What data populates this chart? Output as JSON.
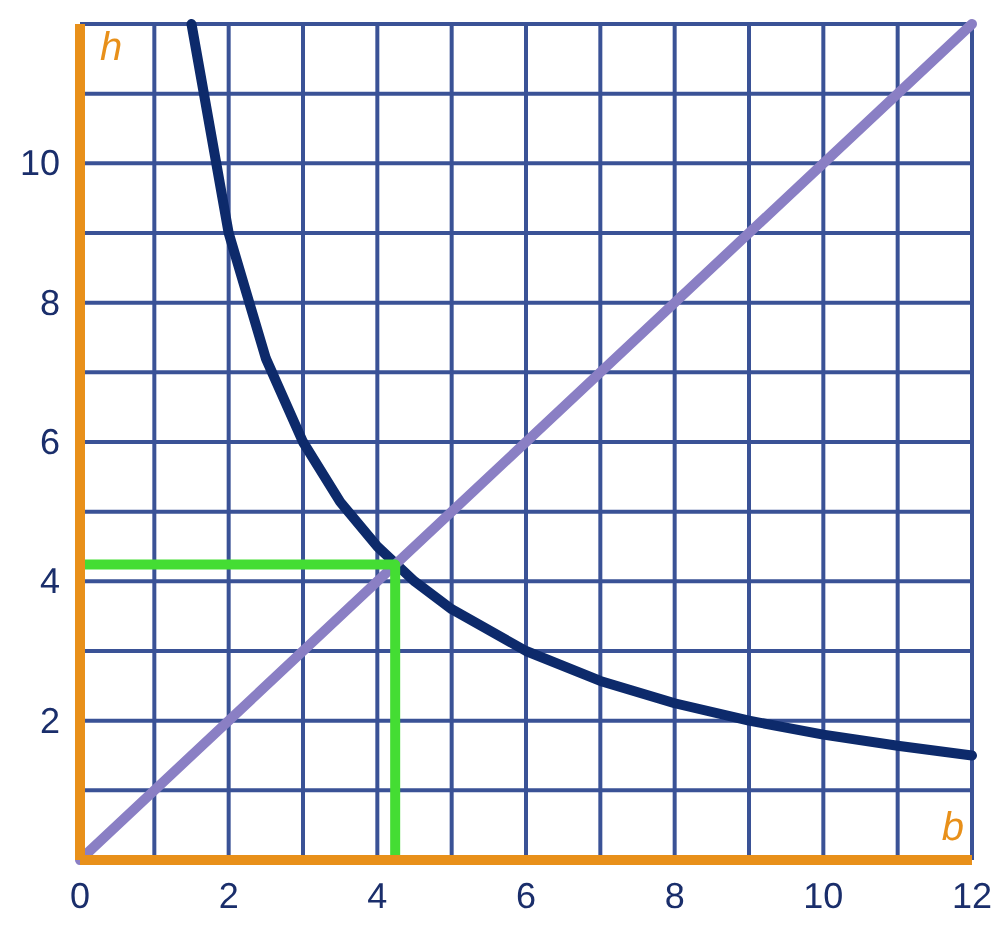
{
  "chart_data": {
    "type": "line",
    "xlabel": "b",
    "ylabel": "h",
    "xlim": [
      0,
      12
    ],
    "ylim": [
      0,
      12
    ],
    "xticks": [
      0,
      {
        "value": 1,
        "label": null
      },
      2,
      {
        "value": 3,
        "label": null
      },
      4,
      {
        "value": 5,
        "label": null
      },
      6,
      {
        "value": 7,
        "label": null
      },
      8,
      {
        "value": 9,
        "label": null
      },
      10,
      {
        "value": 11,
        "label": null
      },
      12
    ],
    "yticks": [
      {
        "value": 1,
        "label": null
      },
      2,
      {
        "value": 3,
        "label": null
      },
      4,
      {
        "value": 5,
        "label": null
      },
      6,
      {
        "value": 7,
        "label": null
      },
      8,
      {
        "value": 9,
        "label": null
      },
      10,
      {
        "value": 11,
        "label": null
      },
      {
        "value": 12,
        "label": null
      }
    ],
    "grid": true,
    "marker": "none",
    "line_style": "solid",
    "series": [
      {
        "color": "#0d2a6b",
        "x": [
          1.5,
          2,
          2.5,
          3,
          3.5,
          4,
          4.5,
          5,
          6,
          7,
          8,
          9,
          10,
          11,
          12
        ],
        "values": [
          12,
          9,
          7.2,
          6,
          5.14,
          4.5,
          4,
          3.6,
          3,
          2.57,
          2.25,
          2,
          1.8,
          1.64,
          1.5
        ]
      },
      {
        "color": "#8a7fc4",
        "x": [
          0,
          12
        ],
        "values": [
          0,
          12
        ]
      },
      {
        "color": "#44dd33",
        "x": [
          0,
          4.24,
          4.24
        ],
        "values": [
          4.24,
          4.24,
          0
        ]
      }
    ]
  }
}
